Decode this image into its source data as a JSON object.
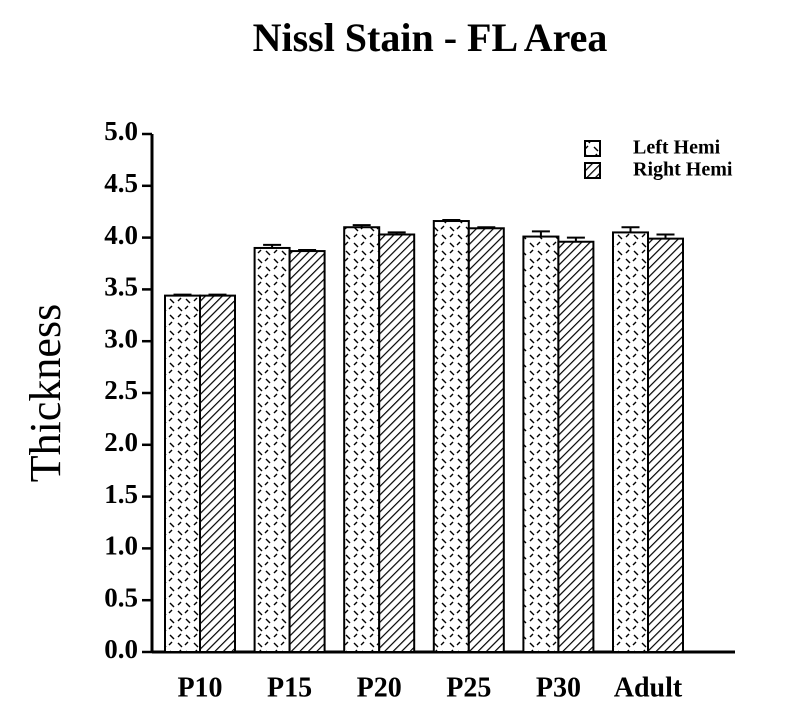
{
  "chart_data": {
    "type": "bar",
    "title": "Nissl Stain - FL Area",
    "y_label": "Thickness",
    "categories": [
      "P10",
      "P15",
      "P20",
      "P25",
      "P30",
      "Adult"
    ],
    "series": [
      {
        "name": "Left Hemi",
        "color": "#000000",
        "pattern": "dashes",
        "values": [
          3.44,
          3.9,
          4.1,
          4.16,
          4.01,
          4.05
        ],
        "errors": [
          0.01,
          0.03,
          0.02,
          0.01,
          0.05,
          0.05
        ]
      },
      {
        "name": "Right Hemi",
        "color": "#000000",
        "pattern": "hatch",
        "values": [
          3.44,
          3.87,
          4.03,
          4.09,
          3.96,
          3.99
        ],
        "errors": [
          0.01,
          0.01,
          0.02,
          0.01,
          0.04,
          0.04
        ]
      }
    ],
    "ylim": [
      0,
      5
    ],
    "yticks": [
      {
        "value": 0,
        "label": "0.0"
      },
      0.5,
      {
        "value": 1,
        "label": "1.0"
      },
      1.5,
      {
        "value": 2,
        "label": "2.0"
      },
      2.5,
      {
        "value": 3,
        "label": "3.0"
      },
      3.5,
      {
        "value": 4,
        "label": "4.0"
      },
      4.5,
      {
        "value": 5,
        "label": "5.0"
      }
    ],
    "legend": "upper right",
    "grid": false
  }
}
